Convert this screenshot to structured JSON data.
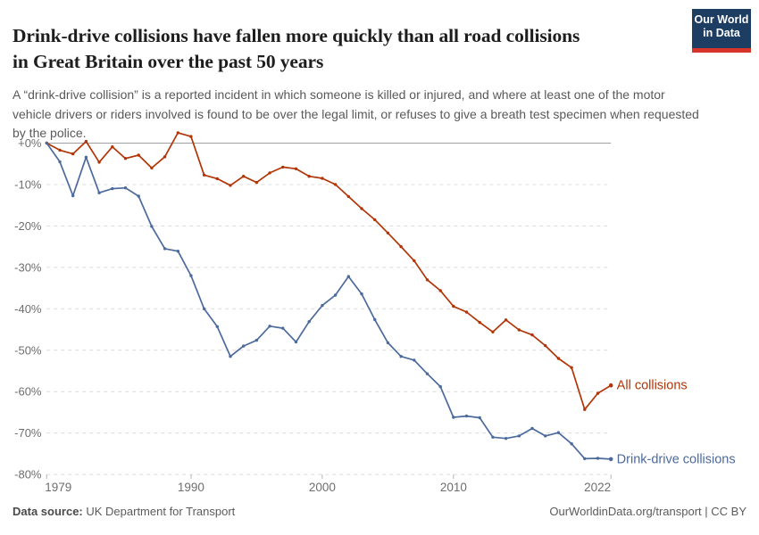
{
  "header": {
    "title_line1": "Drink-drive collisions have fallen more quickly than all road collisions",
    "title_line2": "in Great Britain over the past 50 years",
    "subtitle": "A “drink-drive collision” is a reported incident in which someone is killed or injured, and where at least one of the motor vehicle drivers or riders involved is found to be over the legal limit, or refuses to give a breath test specimen when requested by the police.",
    "logo": {
      "line1": "Our World",
      "line2": "in Data",
      "bg_color": "#1d3d63",
      "accent_color": "#d8352a"
    }
  },
  "chart_data": {
    "type": "line",
    "title": "Drink-drive collisions have fallen more quickly than all road collisions in Great Britain over the past 50 years",
    "x": [
      1979,
      1980,
      1981,
      1982,
      1983,
      1984,
      1985,
      1986,
      1987,
      1988,
      1989,
      1990,
      1991,
      1992,
      1993,
      1994,
      1995,
      1996,
      1997,
      1998,
      1999,
      2000,
      2001,
      2002,
      2003,
      2004,
      2005,
      2006,
      2007,
      2008,
      2009,
      2010,
      2011,
      2012,
      2013,
      2014,
      2015,
      2016,
      2017,
      2018,
      2019,
      2020,
      2021,
      2022
    ],
    "series": [
      {
        "name": "All collisions",
        "color": "#b13507",
        "values": [
          0,
          -1.7,
          -2.6,
          0.4,
          -4.6,
          -0.9,
          -3.7,
          -2.9,
          -6.0,
          -3.3,
          2.5,
          1.6,
          -7.7,
          -8.6,
          -10.2,
          -8.0,
          -9.5,
          -7.2,
          -5.8,
          -6.2,
          -8.0,
          -8.5,
          -10.0,
          -12.9,
          -15.8,
          -18.5,
          -21.7,
          -25.0,
          -28.4,
          -33.0,
          -35.6,
          -39.4,
          -40.8,
          -43.3,
          -45.6,
          -42.7,
          -45.1,
          -46.3,
          -48.9,
          -52.0,
          -54.2,
          -64.3,
          -60.4,
          -58.5
        ]
      },
      {
        "name": "Drink-drive collisions",
        "color": "#4c6a9c",
        "values": [
          0,
          -4.5,
          -12.7,
          -3.4,
          -12.0,
          -11.0,
          -10.8,
          -12.8,
          -20.1,
          -25.5,
          -26.1,
          -32.0,
          -40.0,
          -44.3,
          -51.5,
          -49.0,
          -47.6,
          -44.2,
          -44.7,
          -48.0,
          -43.1,
          -39.2,
          -36.7,
          -32.2,
          -36.4,
          -42.6,
          -48.2,
          -51.5,
          -52.4,
          -55.7,
          -58.8,
          -66.2,
          -65.9,
          -66.3,
          -71.0,
          -71.3,
          -70.7,
          -68.9,
          -70.7,
          -69.9,
          -72.6,
          -76.2,
          -76.1,
          -76.3
        ]
      }
    ],
    "yticks": [
      {
        "label": "+0%",
        "value": 0
      },
      {
        "label": "-10%",
        "value": -10
      },
      {
        "label": "-20%",
        "value": -20
      },
      {
        "label": "-30%",
        "value": -30
      },
      {
        "label": "-40%",
        "value": -40
      },
      {
        "label": "-50%",
        "value": -50
      },
      {
        "label": "-60%",
        "value": -60
      },
      {
        "label": "-70%",
        "value": -70
      },
      {
        "label": "-80%",
        "value": -80
      }
    ],
    "xticks": [
      {
        "label": "1979",
        "value": 1979
      },
      {
        "label": "1990",
        "value": 1990
      },
      {
        "label": "2000",
        "value": 2000
      },
      {
        "label": "2010",
        "value": 2010
      },
      {
        "label": "2022",
        "value": 2022
      }
    ],
    "ylim": [
      -80,
      0
    ],
    "xlim": [
      1979,
      2022
    ],
    "grid": true,
    "legend_position": "end-of-line"
  },
  "footer": {
    "source_label": "Data source:",
    "source_value": " UK Department for Transport",
    "credit": "OurWorldinData.org/transport | CC BY"
  }
}
